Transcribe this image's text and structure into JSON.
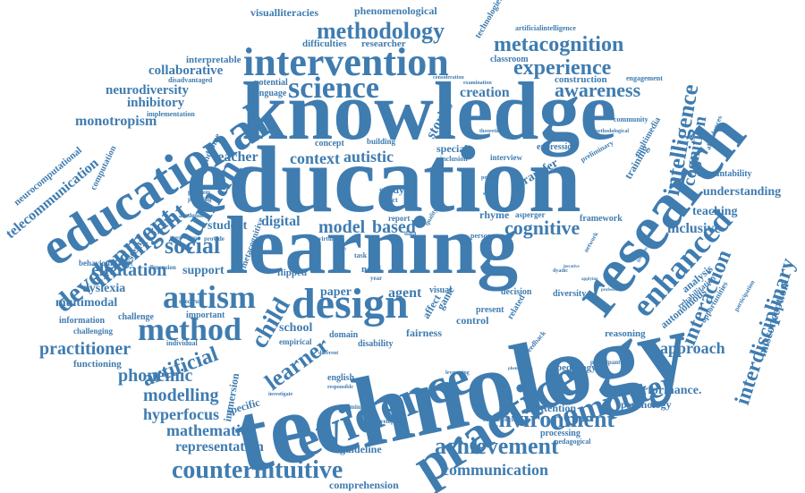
{
  "word_cloud": {
    "color": "#3f7cb0",
    "words": {
      "technology": "technology",
      "knowledge": "knowledge",
      "education": "education",
      "learning": "learning",
      "research": "research",
      "evidence": "evidence",
      "practice": "practice",
      "educational": "educational",
      "intervention": "intervention",
      "design": "design",
      "science": "science",
      "methodology": "methodology",
      "metacognition": "metacognition",
      "experience": "experience",
      "awareness": "awareness",
      "human": "human",
      "autism": "autism",
      "method": "method",
      "social": "social",
      "development": "development",
      "intelligent": "intelligent",
      "computer": "computer",
      "enhanced": "enhanced",
      "environment": "environment",
      "achievement": "achievement",
      "counterintuitive": "counterintuitive",
      "interdisciplinary": "interdisciplinary",
      "interaction": "interaction",
      "intelligence": "intelligence",
      "cognitive": "cognitive",
      "cognition": "cognition",
      "child": "child",
      "learner": "learner",
      "artificial": "artificial",
      "practitioner": "practitioner",
      "phonemic": "phonemic",
      "modelling": "modelling",
      "mathematic": "mathematic",
      "representation": "representation",
      "hyperfocus": "hyperfocus",
      "communication": "communication",
      "comprehension": "comprehension",
      "elicitation": "elicitation",
      "multimodal": "multimodal",
      "dyslexia": "dyslexia",
      "monotropism": "monotropism",
      "neurodiversity": "neurodiversity",
      "collaborative": "collaborative",
      "inhibitory": "inhibitory",
      "telecommunication": "telecommunication",
      "neurocomputational": "neurocomputational",
      "visualliteracies": "visualliteracies",
      "phenomenological": "phenomenological",
      "technologies": "technologies",
      "difficulties": "difficulties",
      "researcher": "researcher",
      "artificialintelligence": "artificialintelligence",
      "classroom": "classroom",
      "construction": "construction",
      "creation": "creation",
      "engagement": "engagement",
      "teacher": "teacher",
      "context": "context",
      "autistic": "autistic",
      "model": "model",
      "based": "based",
      "digital": "digital",
      "student": "student",
      "support": "support",
      "agent": "agent",
      "paper": "paper",
      "school": "school",
      "stories": "stories",
      "transfer": "transfer",
      "training": "training",
      "understanding": "understanding",
      "teaching": "teaching",
      "inclusive": "inclusive",
      "approach": "approach",
      "performance": "performance.",
      "psychology": "psychology",
      "attention": "attention",
      "processing": "processing",
      "pedagogy": "pedagogy",
      "guideline": "guideline",
      "specific": "specific",
      "immersion": "immersion",
      "english": "english",
      "fairness": "fairness",
      "control": "control",
      "framework": "framework",
      "rhyme": "rhyme",
      "asperger": "asperger",
      "accountability": "accountability",
      "multimedia": "multimedia",
      "community": "community",
      "flipped": "flipped",
      "system": "system",
      "behaviour": "behaviour",
      "information": "information",
      "challenge": "challenge",
      "challenging": "challenging",
      "functioning": "functioning",
      "individual": "individual",
      "important": "important",
      "interpretable": "interpretable",
      "potential": "potential",
      "language": "language",
      "disadvantaged": "disadvantaged",
      "implementation": "implementation",
      "computation": "computation",
      "syndrome": "syndrome",
      "study": "study",
      "need": "need",
      "diversity": "diversity",
      "affect": "affect",
      "game": "game",
      "inclusion": "inclusion",
      "special": "special",
      "interview": "interview",
      "expression": "expression",
      "concept": "concept",
      "building": "building",
      "preliminary": "preliminary",
      "methodological": "methodological",
      "theoretical": "theoretical",
      "consideration": "consideration",
      "examination": "examination",
      "reasoning": "reasoning",
      "autonomous": "autonomous",
      "rehabilitation": "rehabilitation",
      "analysis": "analysis",
      "opportunities": "opportunities",
      "participation": "participation",
      "misconception": "misconception",
      "affordances": "affordances",
      "participant": "participant",
      "feedback": "feedback",
      "competencies": "competencies",
      "pedagogical": "pedagogical",
      "developing": "developing",
      "performing": "performing",
      "disability": "disability",
      "domain": "domain",
      "empirical": "empirical",
      "metacognitive": "metacognitive",
      "report": "report",
      "decision": "decision",
      "visual": "visual",
      "present": "present",
      "related": "related",
      "academic": "academic",
      "problem": "problem",
      "planning": "planning",
      "spectrum": "spectrum",
      "dimension": "dimension",
      "provide": "provide",
      "interpretation": "interpretation",
      "investigate": "investigate",
      "different": "different",
      "responsible": "responsible",
      "leveraging": "leveraging",
      "phenomenon": "phenomenon",
      "dyadic": "dyadic",
      "project": "project",
      "signal": "signal",
      "person": "person",
      "virtual": "virtual",
      "data": "data",
      "quality": "quality",
      "ethic": "ethic",
      "efficacy": "efficacy",
      "skill": "skill",
      "task": "task",
      "year": "year",
      "effect": "effect",
      "network": "network",
      "applying": "applying",
      "iterative": "iterative",
      "professional": "professional",
      "literacies": "literacies"
    }
  }
}
